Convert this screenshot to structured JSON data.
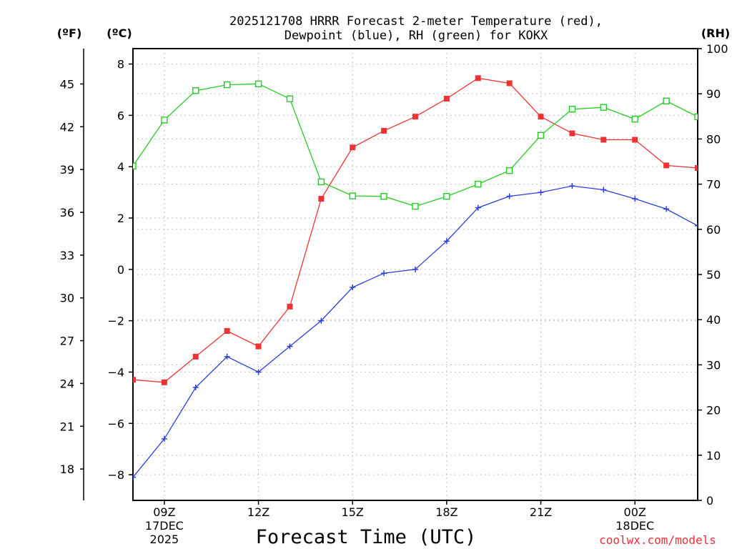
{
  "chart_data": {
    "type": "line",
    "title_line1": "2025121708 HRRR Forecast 2-meter Temperature (red),",
    "title_line2": "Dewpoint (blue), RH (green) for KOKX",
    "xlabel": "Forecast Time (UTC)",
    "credit": "coolwx.com/models",
    "credit_color": "#e8303a",
    "units": {
      "left_f": "(ºF)",
      "left_c": "(ºC)",
      "right": "(RH)"
    },
    "x": [
      "08Z",
      "09Z",
      "10Z",
      "11Z",
      "12Z",
      "13Z",
      "14Z",
      "15Z",
      "16Z",
      "17Z",
      "18Z",
      "19Z",
      "20Z",
      "21Z",
      "22Z",
      "23Z",
      "00Z",
      "01Z",
      "02Z"
    ],
    "x_tick_labels": [
      {
        "index": 1,
        "lines": [
          "09Z",
          "17DEC",
          "2025"
        ]
      },
      {
        "index": 4,
        "lines": [
          "12Z"
        ]
      },
      {
        "index": 7,
        "lines": [
          "15Z"
        ]
      },
      {
        "index": 10,
        "lines": [
          "18Z"
        ]
      },
      {
        "index": 13,
        "lines": [
          "21Z"
        ]
      },
      {
        "index": 16,
        "lines": [
          "00Z",
          "18DEC"
        ]
      }
    ],
    "ylim_c": [
      -9.0,
      8.6
    ],
    "ylim_rh": [
      0,
      100
    ],
    "y_ticks_c": [
      "-8",
      "-6",
      "-4",
      "-2",
      "0",
      "2",
      "4",
      "6",
      "8"
    ],
    "y_ticks_f": [
      "18",
      "21",
      "24",
      "27",
      "30",
      "33",
      "36",
      "39",
      "42",
      "45"
    ],
    "y_ticks_rh": [
      "0",
      "10",
      "20",
      "30",
      "40",
      "50",
      "60",
      "70",
      "80",
      "90",
      "100"
    ],
    "series": [
      {
        "name": "Temperature",
        "unit": "C",
        "color": "#ee3333",
        "marker": "filled-square",
        "values": [
          -4.3,
          -4.4,
          -3.4,
          -2.4,
          -3.0,
          -1.45,
          2.75,
          4.75,
          5.4,
          5.95,
          6.65,
          7.45,
          7.25,
          5.95,
          5.3,
          5.05,
          5.05,
          4.05,
          3.95
        ]
      },
      {
        "name": "Dewpoint",
        "unit": "C",
        "color": "#2c3ddb",
        "marker": "plus",
        "values": [
          -8.1,
          -6.6,
          -4.6,
          -3.4,
          -4.0,
          -3.0,
          -2.0,
          -0.7,
          -0.15,
          0.0,
          1.1,
          2.4,
          2.85,
          3.0,
          3.25,
          3.1,
          2.75,
          2.35,
          1.7
        ]
      },
      {
        "name": "RH",
        "unit": "%",
        "color": "#22cc22",
        "marker": "open-square",
        "values": [
          74.0,
          84.2,
          90.7,
          92.0,
          92.2,
          88.9,
          70.5,
          67.4,
          67.3,
          65.1,
          67.3,
          70.0,
          73.0,
          80.8,
          86.6,
          87.0,
          84.4,
          88.4,
          84.9
        ]
      }
    ]
  }
}
